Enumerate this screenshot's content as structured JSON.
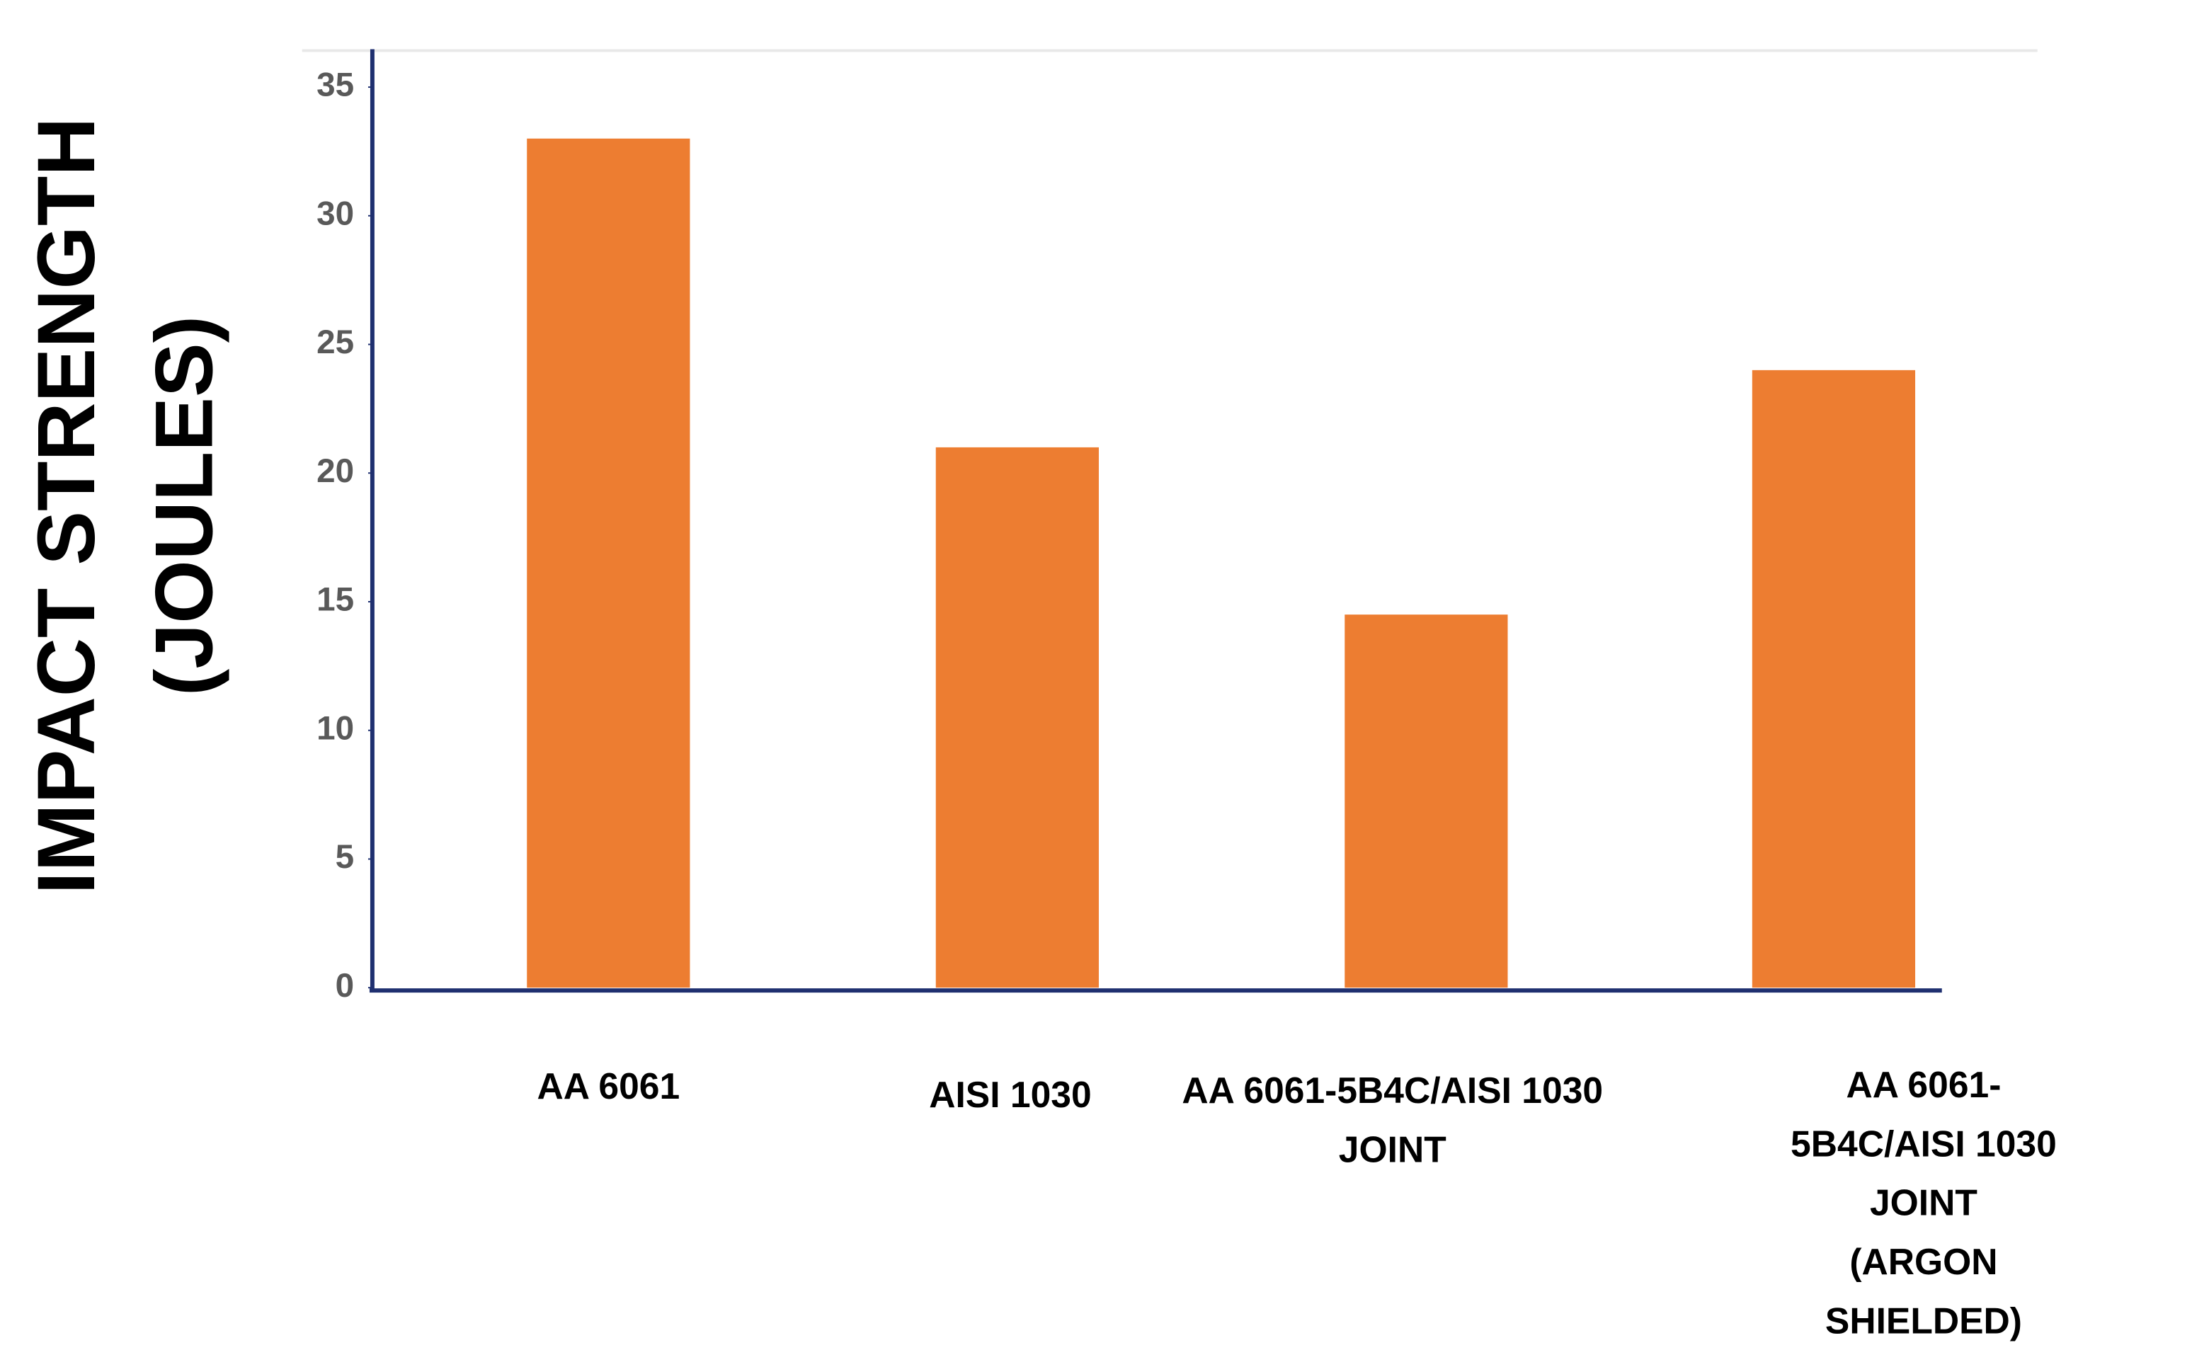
{
  "chart_data": {
    "type": "bar",
    "y_label": "IMPACT STRENGTH\n(JOULES)",
    "categories": [
      "AA 6061",
      "AISI 1030",
      "AA 6061-5B4C/AISI 1030\nJOINT",
      "AA 6061-5B4C/AISI 1030\nJOINT\n(ARGON SHIELDED)"
    ],
    "values": [
      33,
      21,
      14.5,
      24
    ],
    "color": "#ed7d31",
    "ylim": [
      0,
      35
    ],
    "yticks": [
      0,
      5,
      10,
      15,
      20,
      25,
      30,
      35
    ]
  }
}
